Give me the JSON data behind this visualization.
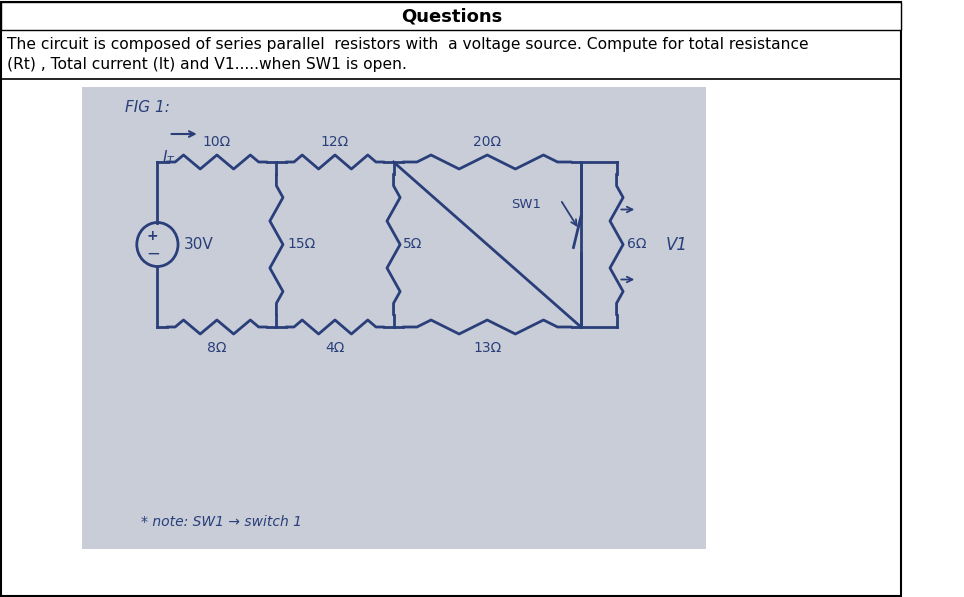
{
  "title": "Questions",
  "description_line1": "The circuit is composed of series parallel  resistors with  a voltage source. Compute for total resistance",
  "description_line2": "(Rt) , Total current (It) and V1.....when SW1 is open.",
  "fig_label": "FIG 1:",
  "note": "* note: SW1 → switch 1",
  "bg_color": "#ffffff",
  "circuit_bg": "#c8cdd8",
  "circuit_line_color": "#2a3f7a",
  "R1_top": "10Ω",
  "R2_top": "12Ω",
  "R3_top": "20Ω",
  "R_mid1": "15Ω",
  "R_mid2": "5Ω",
  "R_right": "6Ω",
  "R_bot1": "8Ω",
  "R_bot2": "4Ω",
  "R_bot3": "13Ω",
  "source_label": "30V",
  "sw1_label": "SW1",
  "V1_label": "V1"
}
